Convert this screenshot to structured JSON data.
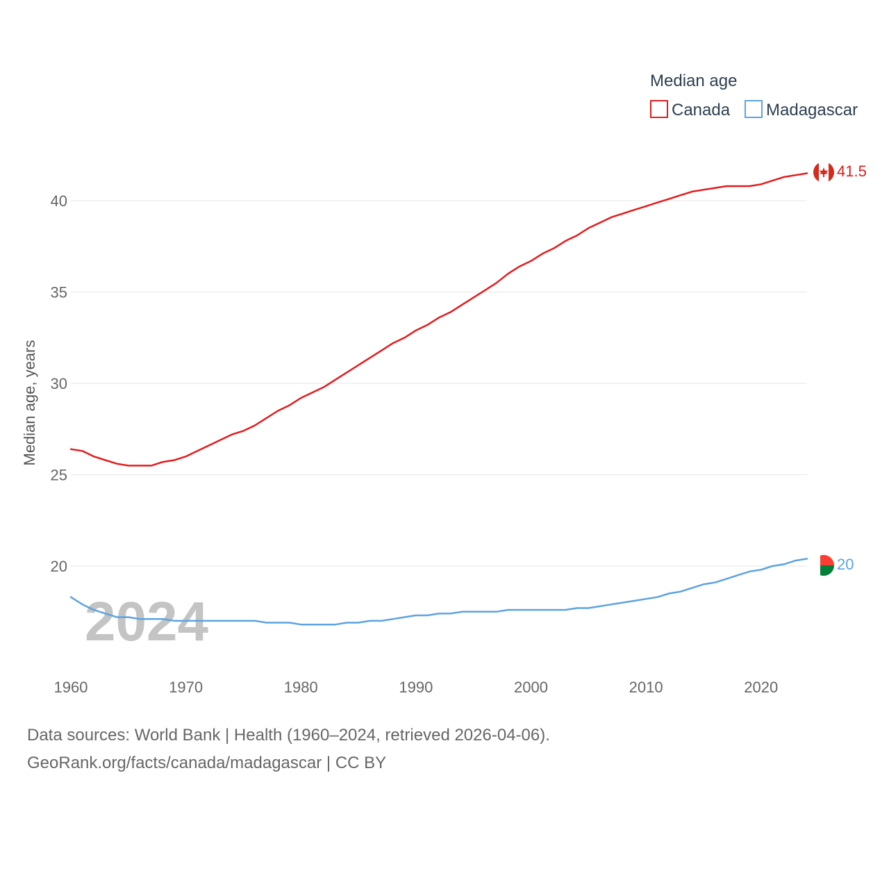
{
  "chart_data": {
    "type": "line",
    "title": "Median age",
    "xlabel": "",
    "ylabel": "Median age, years",
    "xlim": [
      1960,
      2024
    ],
    "ylim": [
      15,
      42
    ],
    "xticks": [
      "1960",
      "1970",
      "1980",
      "1990",
      "2000",
      "2010",
      "2020"
    ],
    "yticks": [
      "20",
      "25",
      "30",
      "35",
      "40"
    ],
    "legend": "top-right",
    "year_label": "2024",
    "series": [
      {
        "name": "Canada",
        "color": "#e41a1c",
        "end_label": "41.5",
        "x": [
          1960,
          1961,
          1962,
          1963,
          1964,
          1965,
          1966,
          1967,
          1968,
          1969,
          1970,
          1971,
          1972,
          1973,
          1974,
          1975,
          1976,
          1977,
          1978,
          1979,
          1980,
          1981,
          1982,
          1983,
          1984,
          1985,
          1986,
          1987,
          1988,
          1989,
          1990,
          1991,
          1992,
          1993,
          1994,
          1995,
          1996,
          1997,
          1998,
          1999,
          2000,
          2001,
          2002,
          2003,
          2004,
          2005,
          2006,
          2007,
          2008,
          2009,
          2010,
          2011,
          2012,
          2013,
          2014,
          2015,
          2016,
          2017,
          2018,
          2019,
          2020,
          2021,
          2022,
          2023,
          2024
        ],
        "values": [
          26.4,
          26.3,
          26.0,
          25.8,
          25.6,
          25.5,
          25.5,
          25.5,
          25.7,
          25.8,
          26.0,
          26.3,
          26.6,
          26.9,
          27.2,
          27.4,
          27.7,
          28.1,
          28.5,
          28.8,
          29.2,
          29.5,
          29.8,
          30.2,
          30.6,
          31.0,
          31.4,
          31.8,
          32.2,
          32.5,
          32.9,
          33.2,
          33.6,
          33.9,
          34.3,
          34.7,
          35.1,
          35.5,
          36.0,
          36.4,
          36.7,
          37.1,
          37.4,
          37.8,
          38.1,
          38.5,
          38.8,
          39.1,
          39.3,
          39.5,
          39.7,
          39.9,
          40.1,
          40.3,
          40.5,
          40.6,
          40.7,
          40.8,
          40.8,
          40.8,
          40.9,
          41.1,
          41.3,
          41.4,
          41.5
        ]
      },
      {
        "name": "Madagascar",
        "color": "#5ba3e0",
        "end_label": "20",
        "x": [
          1960,
          1961,
          1962,
          1963,
          1964,
          1965,
          1966,
          1967,
          1968,
          1969,
          1970,
          1971,
          1972,
          1973,
          1974,
          1975,
          1976,
          1977,
          1978,
          1979,
          1980,
          1981,
          1982,
          1983,
          1984,
          1985,
          1986,
          1987,
          1988,
          1989,
          1990,
          1991,
          1992,
          1993,
          1994,
          1995,
          1996,
          1997,
          1998,
          1999,
          2000,
          2001,
          2002,
          2003,
          2004,
          2005,
          2006,
          2007,
          2008,
          2009,
          2010,
          2011,
          2012,
          2013,
          2014,
          2015,
          2016,
          2017,
          2018,
          2019,
          2020,
          2021,
          2022,
          2023,
          2024
        ],
        "values": [
          18.3,
          17.9,
          17.6,
          17.4,
          17.2,
          17.2,
          17.1,
          17.1,
          17.1,
          17.0,
          17.0,
          17.0,
          17.0,
          17.0,
          17.0,
          17.0,
          17.0,
          16.9,
          16.9,
          16.9,
          16.8,
          16.8,
          16.8,
          16.8,
          16.9,
          16.9,
          17.0,
          17.0,
          17.1,
          17.2,
          17.3,
          17.3,
          17.4,
          17.4,
          17.5,
          17.5,
          17.5,
          17.5,
          17.6,
          17.6,
          17.6,
          17.6,
          17.6,
          17.6,
          17.7,
          17.7,
          17.8,
          17.9,
          18.0,
          18.1,
          18.2,
          18.3,
          18.5,
          18.6,
          18.8,
          19.0,
          19.1,
          19.3,
          19.5,
          19.7,
          19.8,
          20.0,
          20.1,
          20.3,
          20.4
        ]
      }
    ]
  },
  "footer": {
    "sources": "Data sources: World Bank | Health (1960–2024, retrieved 2026-04-06).",
    "credit": "GeoRank.org/facts/canada/madagascar | CC BY"
  }
}
